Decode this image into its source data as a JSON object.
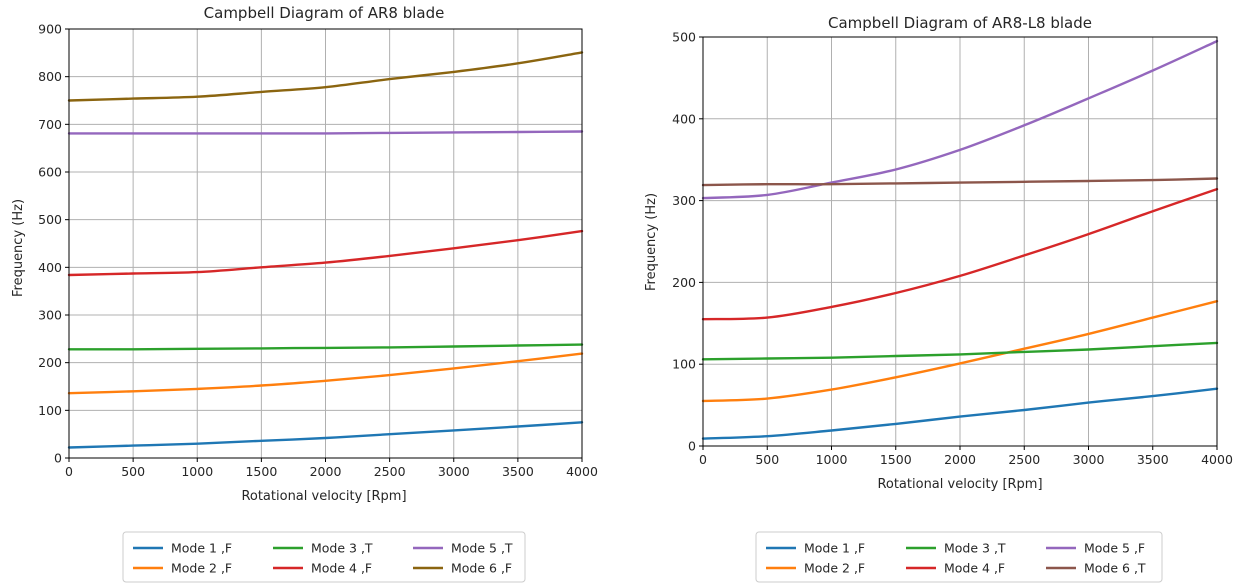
{
  "chart_data": [
    {
      "type": "line",
      "title": "Campbell Diagram of AR8 blade",
      "xlabel": "Rotational velocity [Rpm]",
      "ylabel": "Frequency (Hz)",
      "xlim": [
        0,
        4000
      ],
      "ylim": [
        0,
        900
      ],
      "xticks": [
        0,
        500,
        1000,
        1500,
        2000,
        2500,
        3000,
        3500,
        4000
      ],
      "yticks": [
        0,
        100,
        200,
        300,
        400,
        500,
        600,
        700,
        800,
        900
      ],
      "grid": true,
      "legend_position": "below",
      "x": [
        0,
        500,
        1000,
        1500,
        2000,
        2500,
        3000,
        3500,
        4000
      ],
      "series": [
        {
          "name": "Mode 1 ,F",
          "color": "#1f77b4",
          "values": [
            22,
            26,
            30,
            36,
            42,
            50,
            58,
            66,
            75
          ]
        },
        {
          "name": "Mode 2 ,F",
          "color": "#ff7f0e",
          "values": [
            136,
            140,
            145,
            152,
            162,
            174,
            188,
            203,
            219
          ]
        },
        {
          "name": "Mode 3 ,T",
          "color": "#2ca02c",
          "values": [
            228,
            228,
            229,
            230,
            231,
            232,
            234,
            236,
            238
          ]
        },
        {
          "name": "Mode 4 ,F",
          "color": "#d62728",
          "values": [
            384,
            387,
            390,
            400,
            410,
            424,
            440,
            457,
            476
          ]
        },
        {
          "name": "Mode 5 ,T",
          "color": "#9467bd",
          "values": [
            681,
            681,
            681,
            681,
            681,
            682,
            683,
            684,
            685
          ]
        },
        {
          "name": "Mode 6 ,F",
          "color": "#8b6510",
          "values": [
            750,
            754,
            758,
            768,
            778,
            795,
            810,
            828,
            851
          ]
        }
      ]
    },
    {
      "type": "line",
      "title": "Campbell Diagram of AR8-L8 blade",
      "xlabel": "Rotational velocity [Rpm]",
      "ylabel": "Frequency (Hz)",
      "xlim": [
        0,
        4000
      ],
      "ylim": [
        0,
        500
      ],
      "xticks": [
        0,
        500,
        1000,
        1500,
        2000,
        2500,
        3000,
        3500,
        4000
      ],
      "yticks": [
        0,
        100,
        200,
        300,
        400,
        500
      ],
      "grid": true,
      "legend_position": "below",
      "x": [
        0,
        500,
        1000,
        1500,
        2000,
        2500,
        3000,
        3500,
        4000
      ],
      "series": [
        {
          "name": "Mode 1 ,F",
          "color": "#1f77b4",
          "values": [
            9,
            12,
            19,
            27,
            36,
            44,
            53,
            61,
            70
          ]
        },
        {
          "name": "Mode 2 ,F",
          "color": "#ff7f0e",
          "values": [
            55,
            58,
            69,
            84,
            101,
            119,
            137,
            157,
            177
          ]
        },
        {
          "name": "Mode 3 ,T",
          "color": "#2ca02c",
          "values": [
            106,
            107,
            108,
            110,
            112,
            115,
            118,
            122,
            126
          ]
        },
        {
          "name": "Mode 4 ,F",
          "color": "#d62728",
          "values": [
            155,
            157,
            170,
            187,
            208,
            233,
            259,
            287,
            314
          ]
        },
        {
          "name": "Mode 5 ,F",
          "color": "#9467bd",
          "values": [
            303,
            307,
            322,
            338,
            362,
            392,
            425,
            459,
            495
          ]
        },
        {
          "name": "Mode 6 ,T",
          "color": "#8c564b",
          "values": [
            319,
            320,
            320,
            321,
            322,
            323,
            324,
            325,
            327
          ]
        }
      ]
    }
  ]
}
